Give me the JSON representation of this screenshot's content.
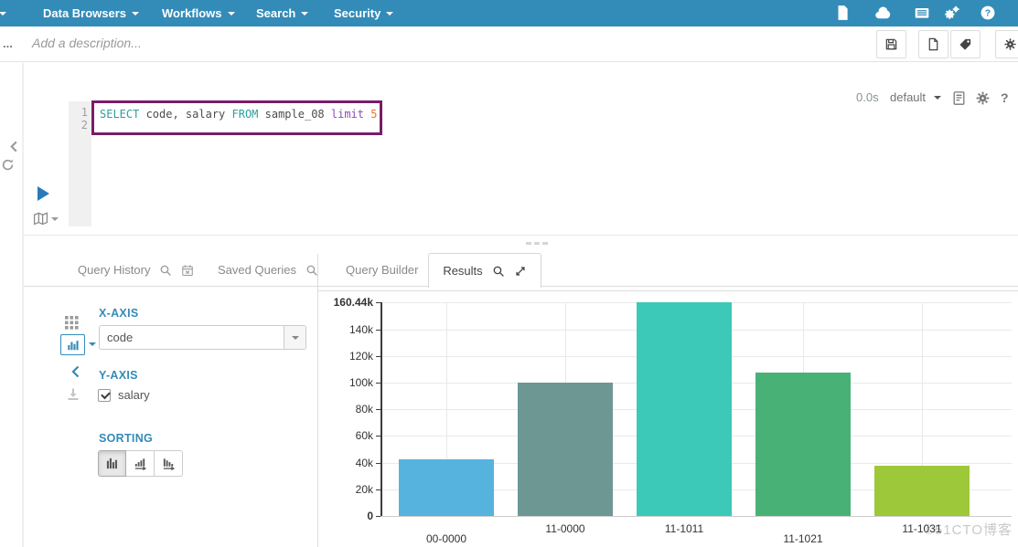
{
  "colors": {
    "brand": "#338bb8",
    "query_border": "#7a1c68",
    "syntax": {
      "keyword": "#2d9d9d",
      "plain": "#4d4d4d",
      "minor": "#8a4bbd",
      "number": "#e4772e"
    }
  },
  "topnav": {
    "items": [
      {
        "label": "s",
        "clipped": true
      },
      {
        "label": "Data Browsers"
      },
      {
        "label": "Workflows"
      },
      {
        "label": "Search"
      },
      {
        "label": "Security"
      }
    ],
    "icons": [
      "document",
      "cloud",
      "server",
      "gears",
      "help"
    ]
  },
  "subheader": {
    "truncated_title": "...",
    "description_placeholder": "Add a description...",
    "buttons": [
      "save",
      "new-document",
      "tag",
      "settings"
    ]
  },
  "editor": {
    "line_numbers": [
      "1",
      "2"
    ],
    "query_tokens": [
      {
        "text": "SELECT ",
        "role": "keyword"
      },
      {
        "text": "code, salary ",
        "role": "plain"
      },
      {
        "text": "FROM ",
        "role": "keyword"
      },
      {
        "text": "sample_08 ",
        "role": "plain"
      },
      {
        "text": "limit ",
        "role": "minor"
      },
      {
        "text": "5",
        "role": "number"
      }
    ],
    "status": {
      "duration": "0.0s",
      "database": "default"
    }
  },
  "tabs": [
    {
      "label": "Query History",
      "icons": [
        "search",
        "calendar"
      ],
      "active": false
    },
    {
      "label": "Saved Queries",
      "icons": [
        "search"
      ],
      "active": false
    },
    {
      "label": "Query Builder",
      "icons": [],
      "active": false
    },
    {
      "label": "Results",
      "icons": [
        "search",
        "expand"
      ],
      "active": true
    }
  ],
  "chart_panel": {
    "x_axis_heading": "X-AXIS",
    "x_axis_selected": "code",
    "y_axis_heading": "Y-AXIS",
    "y_fields": [
      {
        "label": "salary",
        "checked": true
      }
    ],
    "sorting_heading": "SORTING",
    "sort_options": [
      "none",
      "ascending",
      "descending"
    ],
    "active_sort": 0
  },
  "chart_data": {
    "type": "bar",
    "title": "",
    "categories": [
      "00-0000",
      "11-0000",
      "11-1011",
      "11-1021",
      "11-1031"
    ],
    "series": [
      {
        "name": "salary",
        "values": [
          42270,
          100310,
          160440,
          107970,
          37980
        ]
      }
    ],
    "xlabel": "code",
    "ylabel": "salary",
    "ylim": [
      0,
      160440
    ],
    "y_ticks": [
      {
        "v": 0,
        "label": "0",
        "bold": true
      },
      {
        "v": 20000,
        "label": "20k"
      },
      {
        "v": 40000,
        "label": "40k"
      },
      {
        "v": 60000,
        "label": "60k"
      },
      {
        "v": 80000,
        "label": "80k"
      },
      {
        "v": 100000,
        "label": "100k"
      },
      {
        "v": 120000,
        "label": "120k"
      },
      {
        "v": 140000,
        "label": "140k"
      },
      {
        "v": 160440,
        "label": "160.44k",
        "bold": true
      }
    ],
    "bar_colors": [
      "#55b3de",
      "#6d9792",
      "#3cc9b7",
      "#48b176",
      "#9cc83a"
    ],
    "grid": true,
    "legend": false
  },
  "watermark": "©51CTO博客"
}
